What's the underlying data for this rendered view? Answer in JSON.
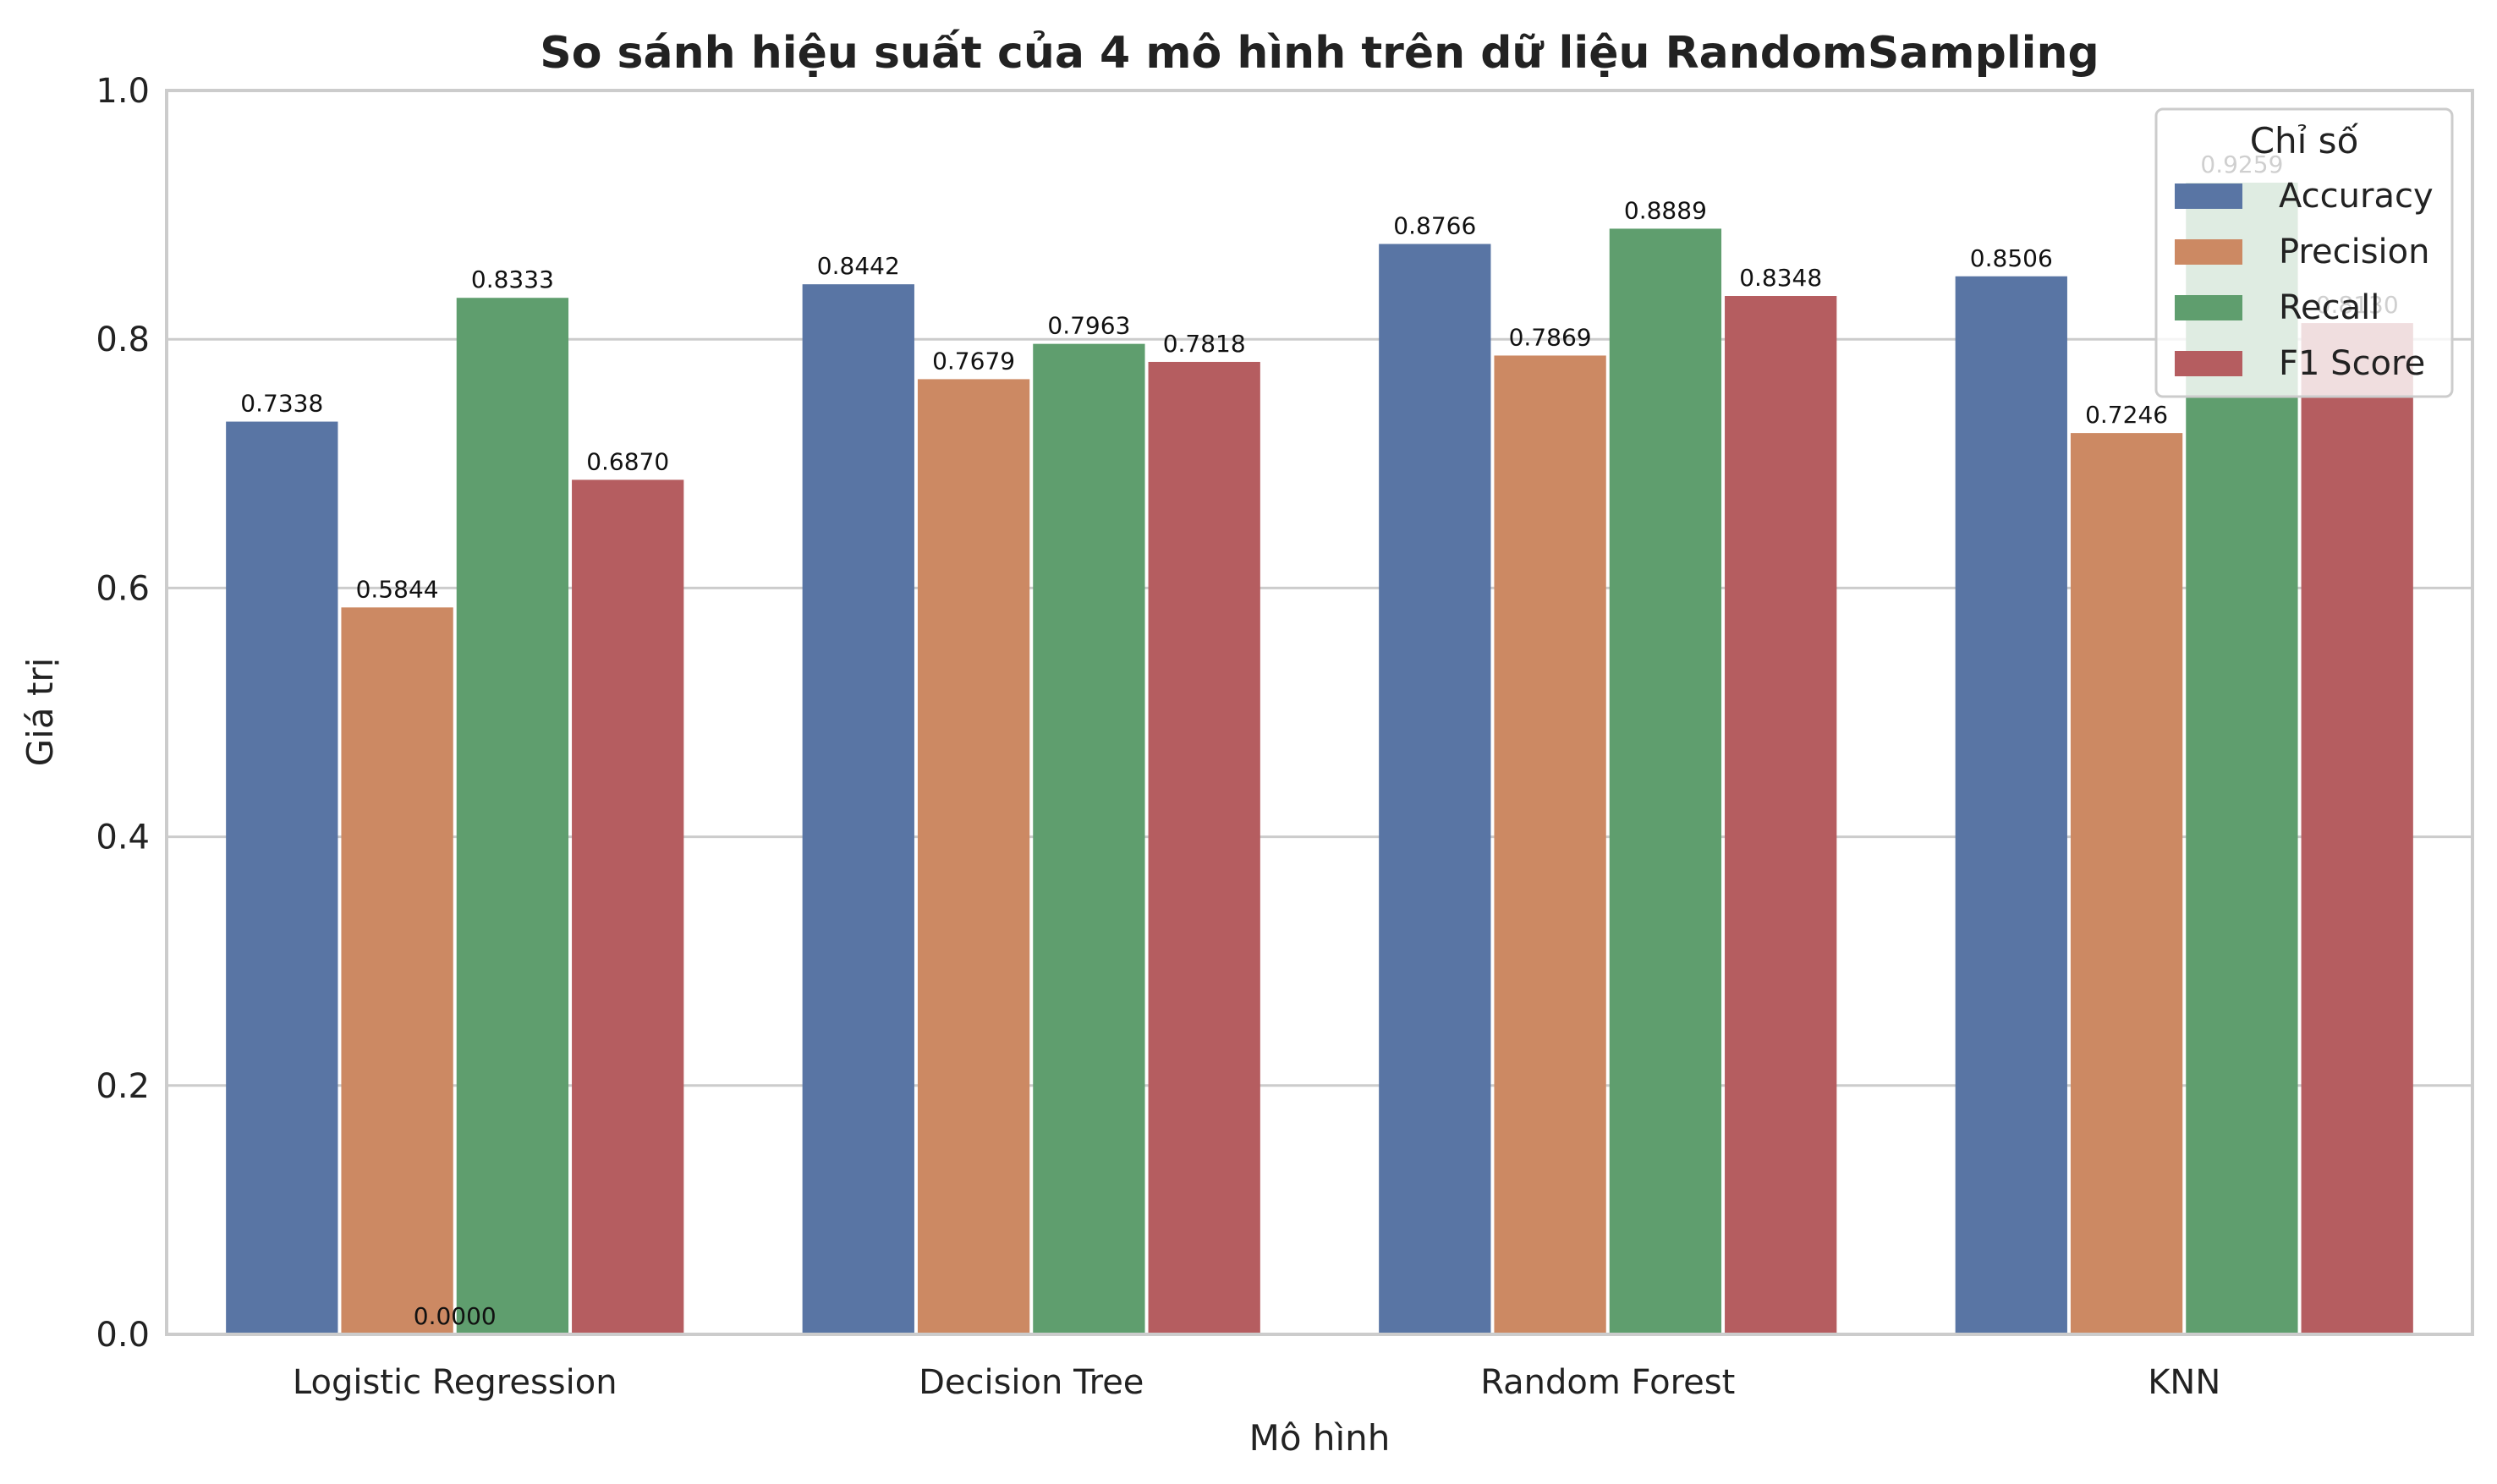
{
  "chart_data": {
    "type": "bar",
    "title": "So sánh hiệu suất của 4 mô hình trên dữ liệu RandomSampling",
    "xlabel": "Mô hình",
    "ylabel": "Giá trị",
    "ylim": [
      0,
      1.0
    ],
    "yticks": [
      "0.0",
      "0.2",
      "0.4",
      "0.6",
      "0.8",
      "1.0"
    ],
    "grid": "horizontal",
    "categories": [
      "Logistic Regression",
      "Decision Tree",
      "Random Forest",
      "KNN"
    ],
    "legend": {
      "title": "Chỉ số",
      "placement": "top-right"
    },
    "series": [
      {
        "name": "Accuracy",
        "color": "#5975a4",
        "values": [
          0.7338,
          0.8442,
          0.8766,
          0.8506
        ],
        "labels": [
          "0.7338",
          "0.8442",
          "0.8766",
          "0.8506"
        ]
      },
      {
        "name": "Precision",
        "color": "#cc8963",
        "values": [
          0.5844,
          0.7679,
          0.7869,
          0.7246
        ],
        "labels": [
          "0.5844",
          "0.7679",
          "0.7869",
          "0.7246"
        ]
      },
      {
        "name": "Recall",
        "color": "#5f9e6e",
        "values": [
          0.8333,
          0.7963,
          0.8889,
          0.9259
        ],
        "labels": [
          "0.8333",
          "0.7963",
          "0.8889",
          "0.9259"
        ]
      },
      {
        "name": "F1 Score",
        "color": "#b55d60",
        "values": [
          0.687,
          0.7818,
          0.8348,
          0.813
        ],
        "labels": [
          "0.6870",
          "0.7818",
          "0.8348",
          "0.8130"
        ]
      }
    ],
    "annotations": [
      "0.0000"
    ]
  }
}
